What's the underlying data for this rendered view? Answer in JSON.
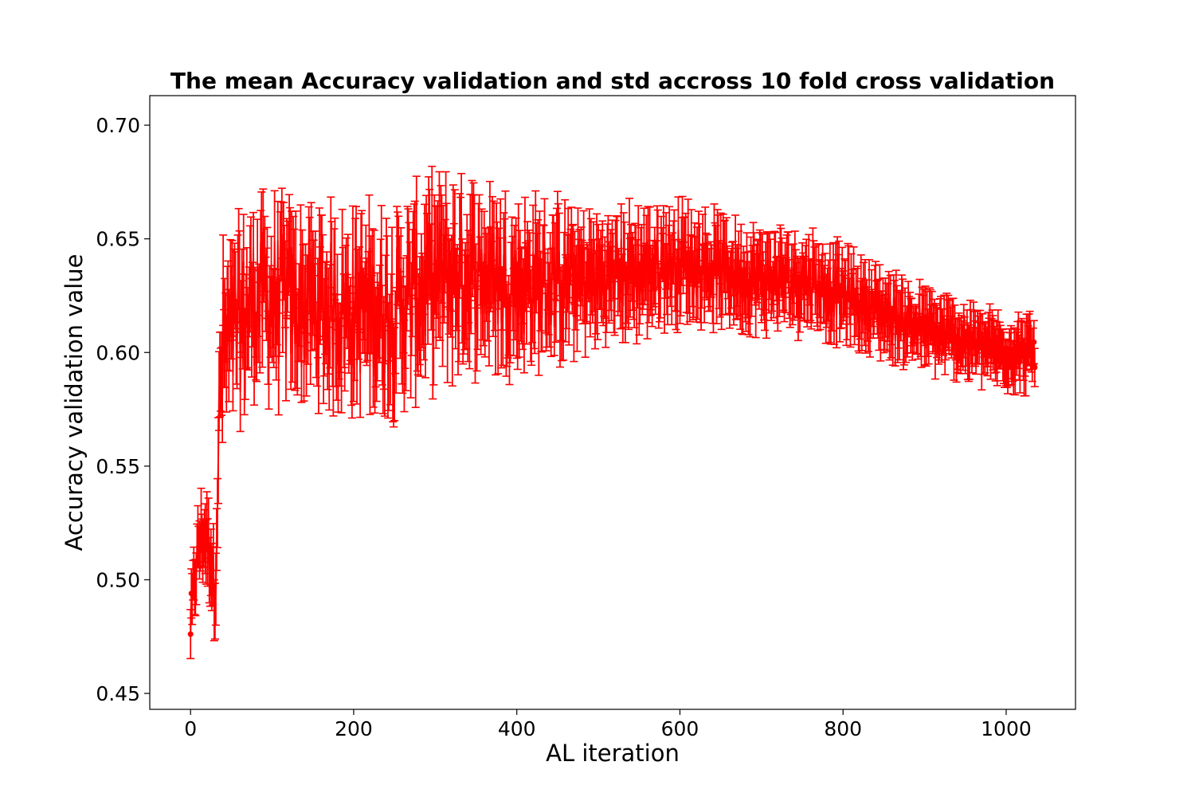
{
  "chart_data": {
    "type": "scatter",
    "style": "errorbar-line",
    "title": "The mean Accuracy validation and std accross 10 fold cross validation",
    "xlabel": "AL iteration",
    "ylabel": "Accuracy validation value",
    "xlim": [
      -50,
      1085
    ],
    "ylim": [
      0.443,
      0.713
    ],
    "x_ticks": [
      0,
      200,
      400,
      600,
      800,
      1000
    ],
    "y_ticks": [
      0.45,
      0.5,
      0.55,
      0.6,
      0.65,
      0.7
    ],
    "y_tick_labels": [
      "0.45",
      "0.50",
      "0.55",
      "0.60",
      "0.65",
      "0.70"
    ],
    "grid": false,
    "legend": "none",
    "series": [
      {
        "color": "#ff0000",
        "x_range": [
          0,
          1035
        ],
        "x_step": 1,
        "mean_anchors": {
          "x": [
            0,
            5,
            10,
            15,
            20,
            25,
            30,
            33,
            36,
            40,
            50,
            80,
            150,
            250,
            300,
            350,
            400,
            500,
            600,
            700,
            760,
            800,
            900,
            1000,
            1035
          ],
          "y": [
            0.48,
            0.5,
            0.515,
            0.52,
            0.518,
            0.51,
            0.495,
            0.54,
            0.58,
            0.6,
            0.605,
            0.625,
            0.62,
            0.618,
            0.632,
            0.635,
            0.63,
            0.632,
            0.64,
            0.632,
            0.632,
            0.625,
            0.61,
            0.6,
            0.6
          ]
        },
        "oscillation_anchors": {
          "x": [
            0,
            30,
            40,
            60,
            100,
            200,
            300,
            400,
            500,
            600,
            700,
            800,
            900,
            1000,
            1035
          ],
          "y": [
            0.01,
            0.012,
            0.035,
            0.03,
            0.03,
            0.03,
            0.028,
            0.025,
            0.018,
            0.015,
            0.013,
            0.012,
            0.01,
            0.008,
            0.008
          ]
        },
        "std_anchors": {
          "x": [
            0,
            30,
            40,
            100,
            300,
            500,
            700,
            900,
            1035
          ],
          "y": [
            0.01,
            0.014,
            0.02,
            0.018,
            0.02,
            0.015,
            0.012,
            0.01,
            0.01
          ]
        }
      }
    ]
  }
}
